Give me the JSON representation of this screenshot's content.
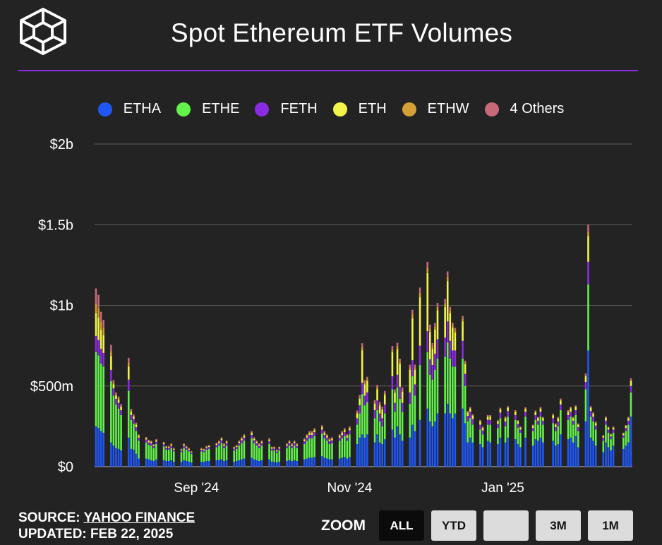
{
  "header": {
    "title": "Spot Ethereum ETF Volumes",
    "logo_icon": "cube-logo-icon"
  },
  "accent_color": "#8b2be2",
  "legend": [
    {
      "label": "ETHA",
      "color": "#1f57f5"
    },
    {
      "label": "ETHE",
      "color": "#62f24b"
    },
    {
      "label": "FETH",
      "color": "#8b2be2"
    },
    {
      "label": "ETH",
      "color": "#f3f54a"
    },
    {
      "label": "ETHW",
      "color": "#d4a035"
    },
    {
      "label": "4 Others",
      "color": "#c8697a"
    }
  ],
  "footer": {
    "source_label": "SOURCE:",
    "source_name": "YAHOO FINANCE",
    "updated": "UPDATED: FEB 22, 2025"
  },
  "zoom": {
    "label": "ZOOM",
    "buttons": [
      "ALL",
      "YTD",
      "",
      "3M",
      "1M"
    ],
    "active": "ALL"
  },
  "chart_data": {
    "type": "bar",
    "stacked": true,
    "title": "Spot Ethereum ETF Volumes",
    "y_unit": "USD millions",
    "ylim": [
      0,
      2000
    ],
    "y_ticks": [
      {
        "value": 0,
        "label": "$0"
      },
      {
        "value": 500,
        "label": "$500m"
      },
      {
        "value": 1000,
        "label": "$1b"
      },
      {
        "value": 1500,
        "label": "$1.5b"
      },
      {
        "value": 2000,
        "label": "$2b"
      }
    ],
    "x_ticks": [
      {
        "date": "2024-09-01",
        "label": "Sep '24"
      },
      {
        "date": "2024-11-01",
        "label": "Nov '24"
      },
      {
        "date": "2025-01-01",
        "label": "Jan '25"
      }
    ],
    "grid": true,
    "legend_position": "top",
    "dates": [
      "2024-07-23",
      "2024-07-24",
      "2024-07-25",
      "2024-07-26",
      "2024-07-29",
      "2024-07-30",
      "2024-07-31",
      "2024-08-01",
      "2024-08-02",
      "2024-08-05",
      "2024-08-06",
      "2024-08-07",
      "2024-08-08",
      "2024-08-09",
      "2024-08-12",
      "2024-08-13",
      "2024-08-14",
      "2024-08-15",
      "2024-08-16",
      "2024-08-19",
      "2024-08-20",
      "2024-08-21",
      "2024-08-22",
      "2024-08-23",
      "2024-08-26",
      "2024-08-27",
      "2024-08-28",
      "2024-08-29",
      "2024-08-30",
      "2024-09-03",
      "2024-09-04",
      "2024-09-05",
      "2024-09-06",
      "2024-09-09",
      "2024-09-10",
      "2024-09-11",
      "2024-09-12",
      "2024-09-13",
      "2024-09-16",
      "2024-09-17",
      "2024-09-18",
      "2024-09-19",
      "2024-09-20",
      "2024-09-23",
      "2024-09-24",
      "2024-09-25",
      "2024-09-26",
      "2024-09-27",
      "2024-09-30",
      "2024-10-01",
      "2024-10-02",
      "2024-10-03",
      "2024-10-04",
      "2024-10-07",
      "2024-10-08",
      "2024-10-09",
      "2024-10-10",
      "2024-10-11",
      "2024-10-14",
      "2024-10-15",
      "2024-10-16",
      "2024-10-17",
      "2024-10-18",
      "2024-10-21",
      "2024-10-22",
      "2024-10-23",
      "2024-10-24",
      "2024-10-25",
      "2024-10-28",
      "2024-10-29",
      "2024-10-30",
      "2024-10-31",
      "2024-11-01",
      "2024-11-04",
      "2024-11-05",
      "2024-11-06",
      "2024-11-07",
      "2024-11-08",
      "2024-11-11",
      "2024-11-12",
      "2024-11-13",
      "2024-11-14",
      "2024-11-15",
      "2024-11-18",
      "2024-11-19",
      "2024-11-20",
      "2024-11-21",
      "2024-11-22",
      "2024-11-25",
      "2024-11-26",
      "2024-11-27",
      "2024-11-29",
      "2024-12-02",
      "2024-12-03",
      "2024-12-04",
      "2024-12-05",
      "2024-12-06",
      "2024-12-09",
      "2024-12-10",
      "2024-12-11",
      "2024-12-12",
      "2024-12-13",
      "2024-12-16",
      "2024-12-17",
      "2024-12-18",
      "2024-12-19",
      "2024-12-20",
      "2024-12-23",
      "2024-12-24",
      "2024-12-26",
      "2024-12-27",
      "2024-12-30",
      "2024-12-31",
      "2025-01-02",
      "2025-01-03",
      "2025-01-06",
      "2025-01-07",
      "2025-01-08",
      "2025-01-10",
      "2025-01-13",
      "2025-01-14",
      "2025-01-15",
      "2025-01-16",
      "2025-01-17",
      "2025-01-21",
      "2025-01-22",
      "2025-01-23",
      "2025-01-24",
      "2025-01-27",
      "2025-01-28",
      "2025-01-29",
      "2025-01-30",
      "2025-01-31",
      "2025-02-03",
      "2025-02-04",
      "2025-02-05",
      "2025-02-06",
      "2025-02-07",
      "2025-02-10",
      "2025-02-11",
      "2025-02-12",
      "2025-02-13",
      "2025-02-14",
      "2025-02-18",
      "2025-02-19",
      "2025-02-20",
      "2025-02-21"
    ],
    "series": [
      {
        "name": "ETHA",
        "color": "#1f57f5",
        "values": [
          250,
          240,
          220,
          210,
          150,
          130,
          115,
          110,
          100,
          180,
          110,
          105,
          80,
          50,
          50,
          45,
          40,
          35,
          45,
          40,
          35,
          35,
          40,
          30,
          30,
          40,
          35,
          30,
          25,
          30,
          30,
          35,
          35,
          40,
          40,
          45,
          35,
          40,
          30,
          35,
          40,
          45,
          50,
          55,
          45,
          40,
          35,
          40,
          45,
          30,
          30,
          25,
          30,
          35,
          40,
          35,
          40,
          35,
          45,
          50,
          55,
          55,
          60,
          65,
          55,
          50,
          45,
          45,
          50,
          55,
          60,
          50,
          60,
          140,
          180,
          200,
          180,
          200,
          150,
          200,
          150,
          140,
          170,
          230,
          180,
          250,
          200,
          160,
          180,
          260,
          220,
          290,
          360,
          280,
          250,
          280,
          330,
          330,
          390,
          330,
          300,
          330,
          360,
          270,
          150,
          180,
          150,
          140,
          120,
          160,
          150,
          140,
          180,
          150,
          180,
          170,
          140,
          120,
          180,
          130,
          170,
          160,
          180,
          150,
          160,
          130,
          140,
          200,
          170,
          180,
          150,
          190,
          120,
          280,
          720,
          180,
          160,
          130,
          90,
          150,
          120,
          100,
          130,
          110,
          130,
          150,
          310
        ]
      },
      {
        "name": "ETHE",
        "color": "#62f24b",
        "values": [
          460,
          450,
          420,
          410,
          380,
          310,
          270,
          250,
          220,
          290,
          180,
          160,
          140,
          110,
          100,
          90,
          90,
          80,
          95,
          85,
          70,
          70,
          75,
          65,
          60,
          75,
          70,
          65,
          55,
          65,
          60,
          70,
          75,
          80,
          90,
          100,
          80,
          90,
          70,
          75,
          90,
          100,
          110,
          120,
          100,
          90,
          80,
          90,
          95,
          70,
          70,
          60,
          70,
          80,
          90,
          80,
          90,
          80,
          95,
          110,
          120,
          120,
          130,
          140,
          120,
          110,
          95,
          100,
          110,
          120,
          130,
          110,
          140,
          120,
          150,
          250,
          200,
          200,
          150,
          150,
          130,
          110,
          160,
          250,
          160,
          240,
          220,
          180,
          210,
          300,
          220,
          340,
          350,
          290,
          290,
          320,
          340,
          350,
          380,
          340,
          320,
          290,
          310,
          230,
          130,
          120,
          110,
          90,
          80,
          100,
          110,
          100,
          120,
          100,
          130,
          120,
          100,
          90,
          130,
          90,
          120,
          100,
          130,
          110,
          110,
          90,
          110,
          150,
          120,
          130,
          110,
          130,
          100,
          200,
          410,
          130,
          120,
          100,
          70,
          110,
          90,
          70,
          80,
          70,
          90,
          110,
          150
        ]
      },
      {
        "name": "FETH",
        "color": "#8b2be2",
        "values": [
          100,
          95,
          90,
          85,
          70,
          45,
          35,
          35,
          30,
          70,
          30,
          30,
          25,
          20,
          18,
          15,
          15,
          12,
          15,
          14,
          12,
          12,
          14,
          10,
          10,
          14,
          12,
          10,
          9,
          10,
          10,
          12,
          12,
          14,
          15,
          18,
          14,
          16,
          12,
          12,
          16,
          18,
          20,
          22,
          18,
          16,
          14,
          16,
          18,
          12,
          12,
          10,
          12,
          14,
          16,
          14,
          16,
          14,
          18,
          20,
          22,
          22,
          24,
          25,
          22,
          20,
          18,
          18,
          20,
          22,
          25,
          20,
          25,
          40,
          50,
          70,
          60,
          60,
          50,
          60,
          50,
          50,
          55,
          80,
          55,
          80,
          75,
          55,
          70,
          100,
          70,
          120,
          130,
          95,
          90,
          100,
          120,
          120,
          130,
          110,
          100,
          100,
          110,
          75,
          35,
          40,
          35,
          30,
          25,
          30,
          30,
          25,
          35,
          30,
          35,
          30,
          25,
          20,
          30,
          20,
          30,
          25,
          30,
          25,
          30,
          25,
          30,
          35,
          30,
          30,
          25,
          30,
          25,
          45,
          140,
          35,
          30,
          25,
          20,
          25,
          20,
          18,
          20,
          15,
          20,
          25,
          40
        ]
      },
      {
        "name": "ETH",
        "color": "#f3f54a",
        "values": [
          140,
          140,
          120,
          110,
          85,
          25,
          20,
          20,
          20,
          80,
          20,
          15,
          15,
          10,
          8,
          8,
          8,
          6,
          8,
          7,
          6,
          6,
          7,
          5,
          5,
          7,
          6,
          5,
          4,
          5,
          5,
          6,
          6,
          7,
          8,
          9,
          7,
          8,
          6,
          6,
          8,
          9,
          10,
          11,
          9,
          8,
          7,
          8,
          9,
          6,
          6,
          5,
          6,
          7,
          8,
          7,
          8,
          7,
          9,
          10,
          11,
          11,
          12,
          13,
          11,
          10,
          9,
          9,
          10,
          11,
          12,
          10,
          12,
          30,
          40,
          200,
          70,
          70,
          40,
          70,
          50,
          50,
          60,
          150,
          60,
          160,
          140,
          70,
          140,
          260,
          90,
          300,
          360,
          170,
          100,
          150,
          180,
          190,
          250,
          170,
          140,
          110,
          120,
          60,
          20,
          20,
          20,
          20,
          15,
          20,
          20,
          15,
          20,
          20,
          20,
          20,
          15,
          12,
          18,
          12,
          18,
          15,
          20,
          15,
          18,
          15,
          18,
          25,
          20,
          22,
          15,
          20,
          15,
          35,
          160,
          20,
          18,
          15,
          10,
          18,
          12,
          10,
          12,
          10,
          12,
          15,
          30
        ]
      },
      {
        "name": "ETHW",
        "color": "#d4a035",
        "values": [
          60,
          55,
          50,
          45,
          30,
          12,
          10,
          10,
          8,
          25,
          8,
          6,
          6,
          5,
          4,
          4,
          4,
          3,
          4,
          4,
          3,
          3,
          4,
          3,
          3,
          4,
          3,
          3,
          2,
          3,
          3,
          3,
          3,
          4,
          4,
          5,
          4,
          4,
          3,
          3,
          4,
          5,
          5,
          6,
          5,
          4,
          4,
          4,
          5,
          3,
          3,
          3,
          3,
          4,
          4,
          4,
          4,
          4,
          5,
          5,
          6,
          6,
          6,
          7,
          6,
          5,
          5,
          5,
          5,
          6,
          6,
          5,
          6,
          8,
          10,
          20,
          12,
          12,
          10,
          12,
          10,
          10,
          11,
          18,
          11,
          18,
          16,
          12,
          15,
          25,
          15,
          28,
          32,
          20,
          16,
          18,
          20,
          22,
          28,
          18,
          15,
          14,
          16,
          10,
          5,
          5,
          5,
          5,
          4,
          5,
          5,
          4,
          5,
          5,
          5,
          5,
          4,
          4,
          5,
          4,
          5,
          4,
          5,
          4,
          5,
          4,
          5,
          6,
          5,
          5,
          4,
          5,
          4,
          8,
          25,
          5,
          4,
          4,
          3,
          4,
          3,
          3,
          3,
          3,
          3,
          4,
          8
        ]
      },
      {
        "name": "4 Others",
        "color": "#c8697a",
        "values": [
          95,
          85,
          60,
          50,
          40,
          15,
          10,
          10,
          10,
          30,
          10,
          8,
          7,
          5,
          4,
          4,
          4,
          3,
          4,
          4,
          3,
          3,
          4,
          3,
          3,
          4,
          3,
          3,
          2,
          3,
          3,
          3,
          3,
          4,
          4,
          5,
          4,
          4,
          3,
          3,
          4,
          5,
          5,
          6,
          5,
          4,
          4,
          4,
          5,
          3,
          3,
          3,
          3,
          4,
          4,
          4,
          4,
          4,
          5,
          5,
          6,
          6,
          6,
          7,
          6,
          5,
          5,
          5,
          5,
          6,
          6,
          5,
          6,
          10,
          15,
          25,
          15,
          15,
          12,
          15,
          12,
          12,
          13,
          20,
          13,
          20,
          18,
          14,
          17,
          28,
          18,
          32,
          38,
          25,
          20,
          22,
          25,
          28,
          32,
          22,
          18,
          16,
          18,
          12,
          5,
          5,
          5,
          5,
          4,
          5,
          5,
          4,
          5,
          5,
          5,
          5,
          4,
          4,
          5,
          4,
          5,
          4,
          5,
          4,
          5,
          4,
          5,
          6,
          5,
          5,
          4,
          5,
          4,
          10,
          45,
          5,
          4,
          4,
          3,
          4,
          3,
          3,
          3,
          3,
          3,
          4,
          10
        ]
      }
    ]
  }
}
